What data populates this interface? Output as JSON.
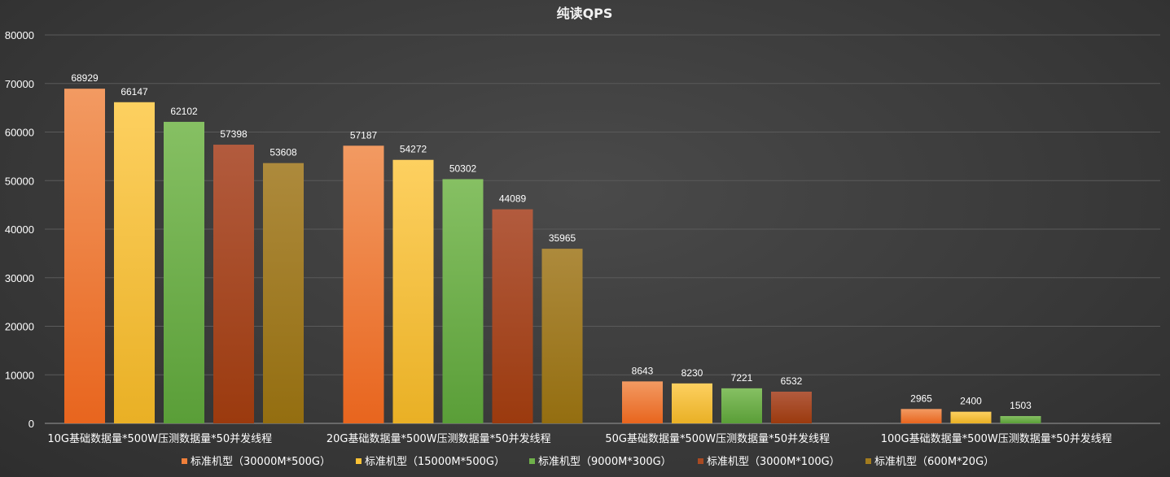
{
  "chart_data": {
    "type": "bar",
    "title": "纯读QPS",
    "categories": [
      "10G基础数据量*500W压测数据量*50并发线程",
      "20G基础数据量*500W压测数据量*50并发线程",
      "50G基础数据量*500W压测数据量*50并发线程",
      "100G基础数据量*500W压测数据量*50并发线程"
    ],
    "series": [
      {
        "name": "标准机型（30000M*500G）",
        "values": [
          68929,
          57187,
          8643,
          2965
        ],
        "color": "#f07f3a",
        "color_light": "#f29a62",
        "color_dark": "#e8651e"
      },
      {
        "name": "标准机型（15000M*500G）",
        "values": [
          66147,
          54272,
          8230,
          2400
        ],
        "color": "#fbc235",
        "color_light": "#fdd060",
        "color_dark": "#e9b025"
      },
      {
        "name": "标准机型（9000M*300G）",
        "values": [
          62102,
          50302,
          7221,
          1503
        ],
        "color": "#6fb14a",
        "color_light": "#86c063",
        "color_dark": "#5a9e38"
      },
      {
        "name": "标准机型（3000M*100G）",
        "values": [
          57398,
          44089,
          6532,
          null
        ],
        "color": "#a94a22",
        "color_light": "#b25b3e",
        "color_dark": "#9b3a0e"
      },
      {
        "name": "标准机型（600M*20G）",
        "values": [
          53608,
          35965,
          null,
          null
        ],
        "color": "#a37c1e",
        "color_light": "#ad8a3c",
        "color_dark": "#946e10"
      }
    ],
    "ylim": [
      0,
      80000
    ],
    "yticks": [
      0,
      10000,
      20000,
      30000,
      40000,
      50000,
      60000,
      70000,
      80000
    ],
    "grid": true,
    "legend_position": "bottom",
    "data_labels": true
  }
}
